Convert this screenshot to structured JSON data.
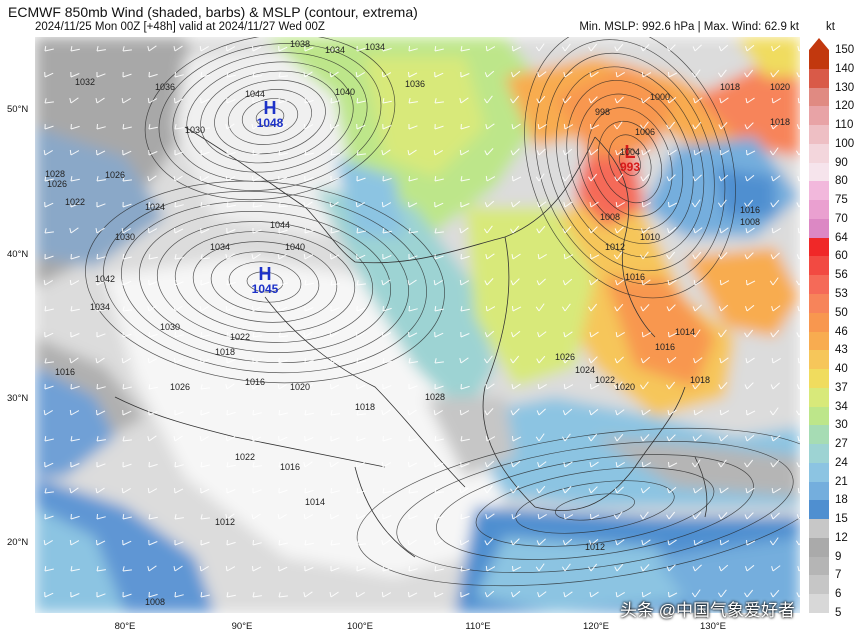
{
  "header": {
    "title": "ECMWF 850mb Wind (shaded, barbs) & MSLP (contour, extrema)",
    "subtitle": "2024/11/25 Mon 00Z [+48h] valid at 2024/11/27 Wed 00Z",
    "stats": "Min. MSLP: 992.6 hPa | Max. Wind: 62.9 kt"
  },
  "colorbar": {
    "unit": "kt",
    "levels": [
      "150",
      "140",
      "130",
      "120",
      "110",
      "100",
      "90",
      "80",
      "75",
      "70",
      "64",
      "60",
      "56",
      "53",
      "50",
      "46",
      "43",
      "40",
      "37",
      "34",
      "30",
      "27",
      "24",
      "21",
      "18",
      "15",
      "12",
      "9",
      "7",
      "6",
      "5"
    ],
    "colors": [
      "#c2380e",
      "#d95a48",
      "#e08a82",
      "#e8a3a6",
      "#eebfc4",
      "#f3d6dc",
      "#f6e4ec",
      "#f2b8dc",
      "#eaa0d0",
      "#dc88c4",
      "#f02828",
      "#f24a42",
      "#f56a58",
      "#f7845a",
      "#f8974f",
      "#f8ac50",
      "#f6c65a",
      "#f0dc5e",
      "#d8e97a",
      "#bde68a",
      "#a6dcb4",
      "#9dd3d3",
      "#8cc4e2",
      "#74aedd",
      "#4f8fd0",
      "#c7c7c7",
      "#aaaaaa",
      "#b5b5b5",
      "#c6c6c6",
      "#d8d8d8"
    ]
  },
  "map": {
    "lat_labels": [
      "50°N",
      "40°N",
      "30°N",
      "20°N"
    ],
    "lon_labels": [
      "80°E",
      "90°E",
      "100°E",
      "110°E",
      "120°E",
      "130°E"
    ],
    "extrema": [
      {
        "type": "H",
        "value": "1048"
      },
      {
        "type": "H",
        "value": "1045"
      },
      {
        "type": "L",
        "value": "993"
      }
    ],
    "isobar_labels": [
      "1038",
      "1034",
      "1034",
      "1036",
      "1032",
      "1036",
      "1040",
      "1044",
      "1030",
      "1028",
      "1026",
      "1026",
      "1022",
      "1024",
      "1030",
      "1044",
      "1042",
      "1040",
      "1034",
      "1034",
      "1030",
      "1016",
      "1026",
      "1022",
      "1018",
      "1016",
      "1020",
      "1022",
      "1028",
      "1016",
      "1014",
      "1012",
      "1008",
      "1018",
      "1026",
      "1024",
      "1022",
      "1020",
      "1018",
      "1016",
      "1014",
      "1012",
      "1016",
      "1004",
      "1006",
      "1000",
      "998",
      "1008",
      "1010",
      "1012",
      "1016",
      "1018",
      "1020",
      "1018",
      "1008"
    ],
    "colors": {
      "ocean_blue": "#4f8fd0",
      "land_gray": "#c0c0c0",
      "jet_orange": "#f8974f",
      "high": "#1d32c8",
      "low": "#d61a1a"
    }
  },
  "watermark": "头条 @中国气象爱好者"
}
